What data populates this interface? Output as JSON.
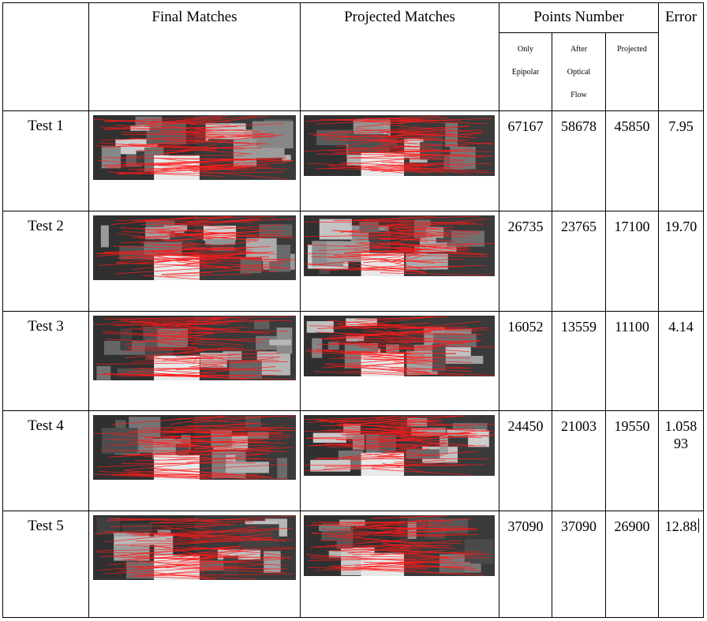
{
  "headers": {
    "final_matches": "Final Matches",
    "projected_matches": "Projected Matches",
    "points_number": "Points Number",
    "error": "Error"
  },
  "subheaders": {
    "only_epipolar": [
      "Only",
      "Epipolar"
    ],
    "after_optical_flow": [
      "After",
      "Optical",
      "Flow"
    ],
    "projected": "Projected"
  },
  "rows": [
    {
      "label": "Test 1",
      "only_epipolar": "67167",
      "after_optical_flow": "58678",
      "projected": "45850",
      "error": [
        "7.95"
      ]
    },
    {
      "label": "Test 2",
      "only_epipolar": "26735",
      "after_optical_flow": "23765",
      "projected": "17100",
      "error": [
        "19.70"
      ]
    },
    {
      "label": "Test 3",
      "only_epipolar": "16052",
      "after_optical_flow": "13559",
      "projected": "11100",
      "error": [
        "4.14"
      ]
    },
    {
      "label": "Test 4",
      "only_epipolar": "24450",
      "after_optical_flow": "21003",
      "projected": "19550",
      "error": [
        "1.058",
        "93"
      ]
    },
    {
      "label": "Test 5",
      "only_epipolar": "37090",
      "after_optical_flow": "37090",
      "projected": "26900",
      "error": [
        "12.88"
      ]
    }
  ],
  "colors": {
    "match_line": "#ff1a1a",
    "scene_dark": "#2a2a2a",
    "scene_light": "#bdbdbd"
  }
}
